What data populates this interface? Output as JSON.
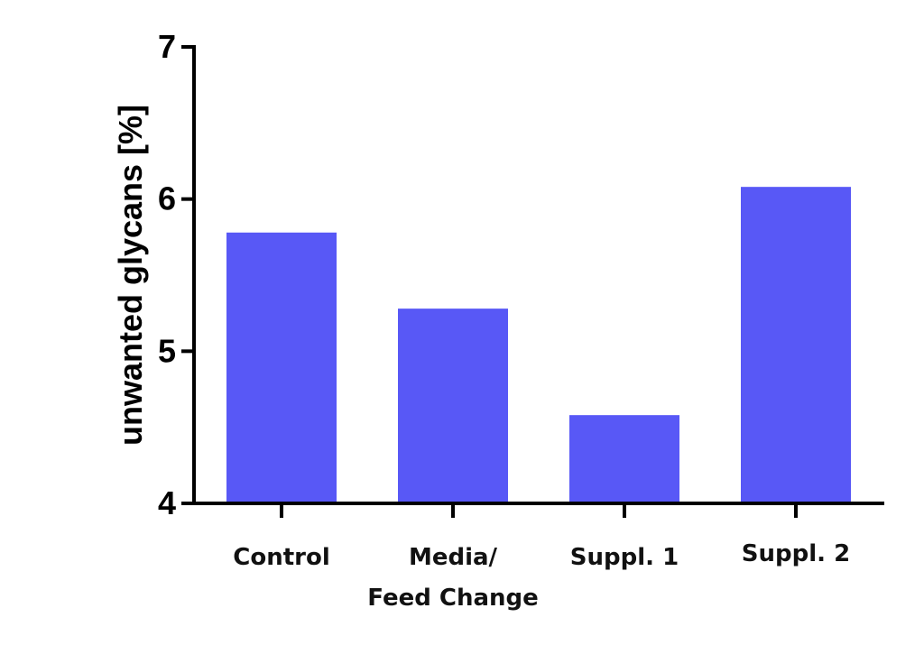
{
  "chart_data": {
    "type": "bar",
    "categories": [
      "Control",
      "Media/ Feed Change",
      "Suppl. 1",
      "Suppl. 2"
    ],
    "category_lines": [
      [
        "Control"
      ],
      [
        "Media/",
        "Feed Change"
      ],
      [
        "Suppl. 1"
      ],
      [
        "Suppl. 2"
      ]
    ],
    "values": [
      5.78,
      5.28,
      4.58,
      6.08
    ],
    "ylabel": "unwanted glycans [%]",
    "xlabel": "",
    "ylim": [
      4,
      7
    ],
    "yticks": [
      4,
      5,
      6,
      7
    ],
    "bar_color": "#5858f6",
    "grid": false,
    "legend": "none"
  }
}
